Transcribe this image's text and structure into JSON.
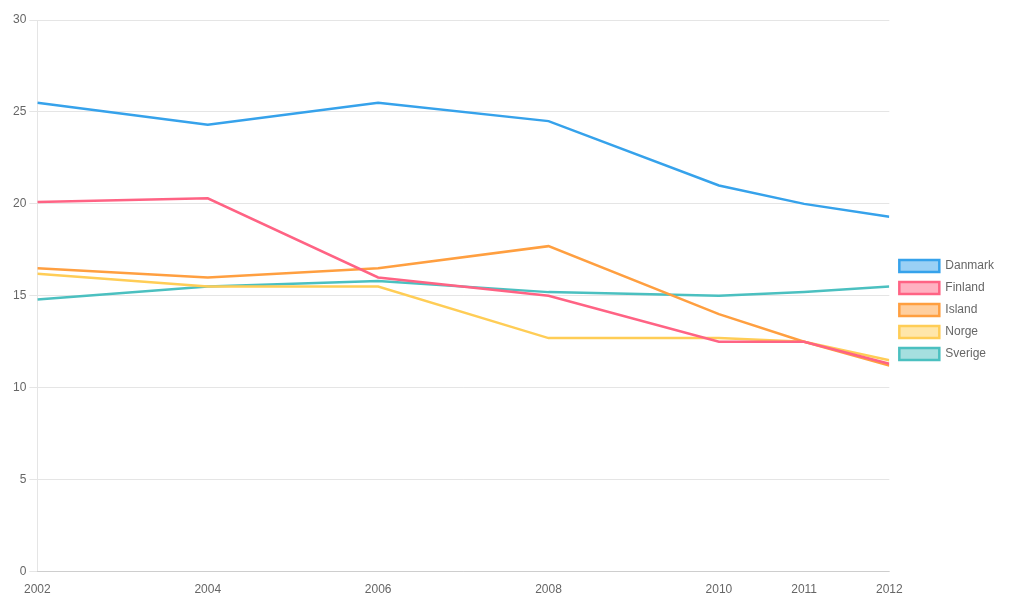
{
  "chart_data": {
    "type": "line",
    "x": [
      2002,
      2004,
      2006,
      2008,
      2010,
      2011,
      2012
    ],
    "series": [
      {
        "name": "Danmark",
        "values": [
          25.5,
          24.3,
          25.5,
          24.5,
          21.0,
          20.0,
          19.3
        ]
      },
      {
        "name": "Finland",
        "values": [
          20.1,
          20.3,
          16.0,
          15.0,
          12.5,
          12.5,
          11.3
        ]
      },
      {
        "name": "Island",
        "values": [
          16.5,
          16.0,
          16.5,
          17.7,
          14.0,
          12.5,
          11.2
        ]
      },
      {
        "name": "Norge",
        "values": [
          16.2,
          15.5,
          15.5,
          12.7,
          12.7,
          12.5,
          11.5
        ]
      },
      {
        "name": "Sverige",
        "values": [
          14.8,
          15.5,
          15.8,
          15.2,
          15.0,
          15.2,
          15.5
        ]
      }
    ],
    "xlim": [
      2002,
      2012
    ],
    "xticks": [
      2002,
      2004,
      2006,
      2008,
      2010,
      2011,
      2012
    ],
    "ylim": [
      0,
      30
    ],
    "yticks": [
      0,
      5,
      10,
      15,
      20,
      25,
      30
    ],
    "grid": true,
    "legend": "right"
  }
}
